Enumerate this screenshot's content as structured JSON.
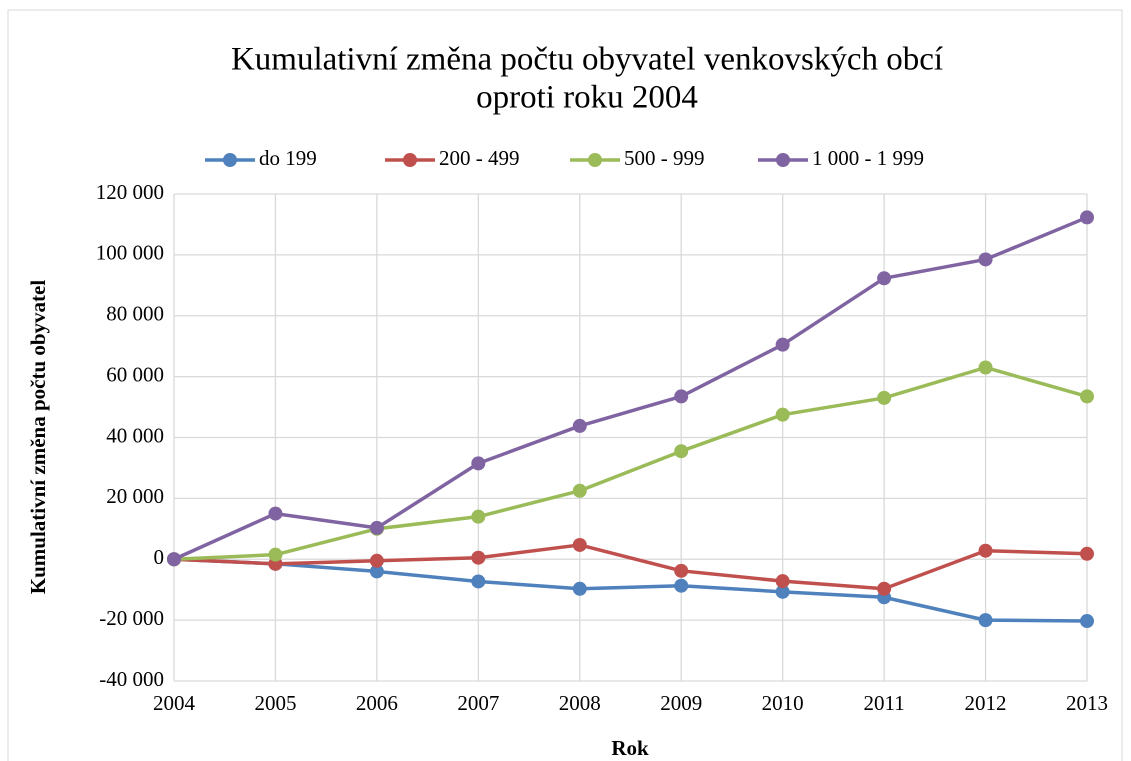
{
  "chart_data": {
    "type": "line",
    "title": [
      "Kumulativní změna počtu obyvatel venkovských obcí",
      "oproti roku 2004"
    ],
    "x_label": "Rok",
    "y_label": "Kumulativní změna počtu obyvatel",
    "categories": [
      "2004",
      "2005",
      "2006",
      "2007",
      "2008",
      "2009",
      "2010",
      "2011",
      "2012",
      "2013"
    ],
    "series": [
      {
        "name": "do 199",
        "color": "#4f81bd",
        "values": [
          0,
          -1500,
          -4000,
          -7300,
          -9700,
          -8700,
          -10700,
          -12500,
          -20000,
          -20300
        ]
      },
      {
        "name": "200 - 499",
        "color": "#c0504d",
        "values": [
          0,
          -1500,
          -500,
          500,
          4700,
          -3800,
          -7200,
          -9700,
          2800,
          1800
        ]
      },
      {
        "name": "500 - 999",
        "color": "#9bbb59",
        "values": [
          0,
          1500,
          10000,
          14000,
          22500,
          35500,
          47500,
          53000,
          63000,
          53500
        ]
      },
      {
        "name": "1 000 - 1 999",
        "color": "#8064a2",
        "values": [
          0,
          15000,
          10300,
          31500,
          43800,
          53500,
          70500,
          92300,
          98500,
          112300
        ]
      }
    ],
    "ylim": [
      -40000,
      120000
    ],
    "yticks": [
      {
        "value": -40000,
        "label": "-40 000"
      },
      {
        "value": -20000,
        "label": "-20 000"
      },
      0,
      {
        "value": 20000,
        "label": "20 000"
      },
      {
        "value": 40000,
        "label": "40 000"
      },
      {
        "value": 60000,
        "label": "60 000"
      },
      {
        "value": 80000,
        "label": "80 000"
      },
      {
        "value": 100000,
        "label": "100 000"
      },
      {
        "value": 120000,
        "label": "120 000"
      }
    ],
    "grid": true,
    "legend": "top"
  }
}
